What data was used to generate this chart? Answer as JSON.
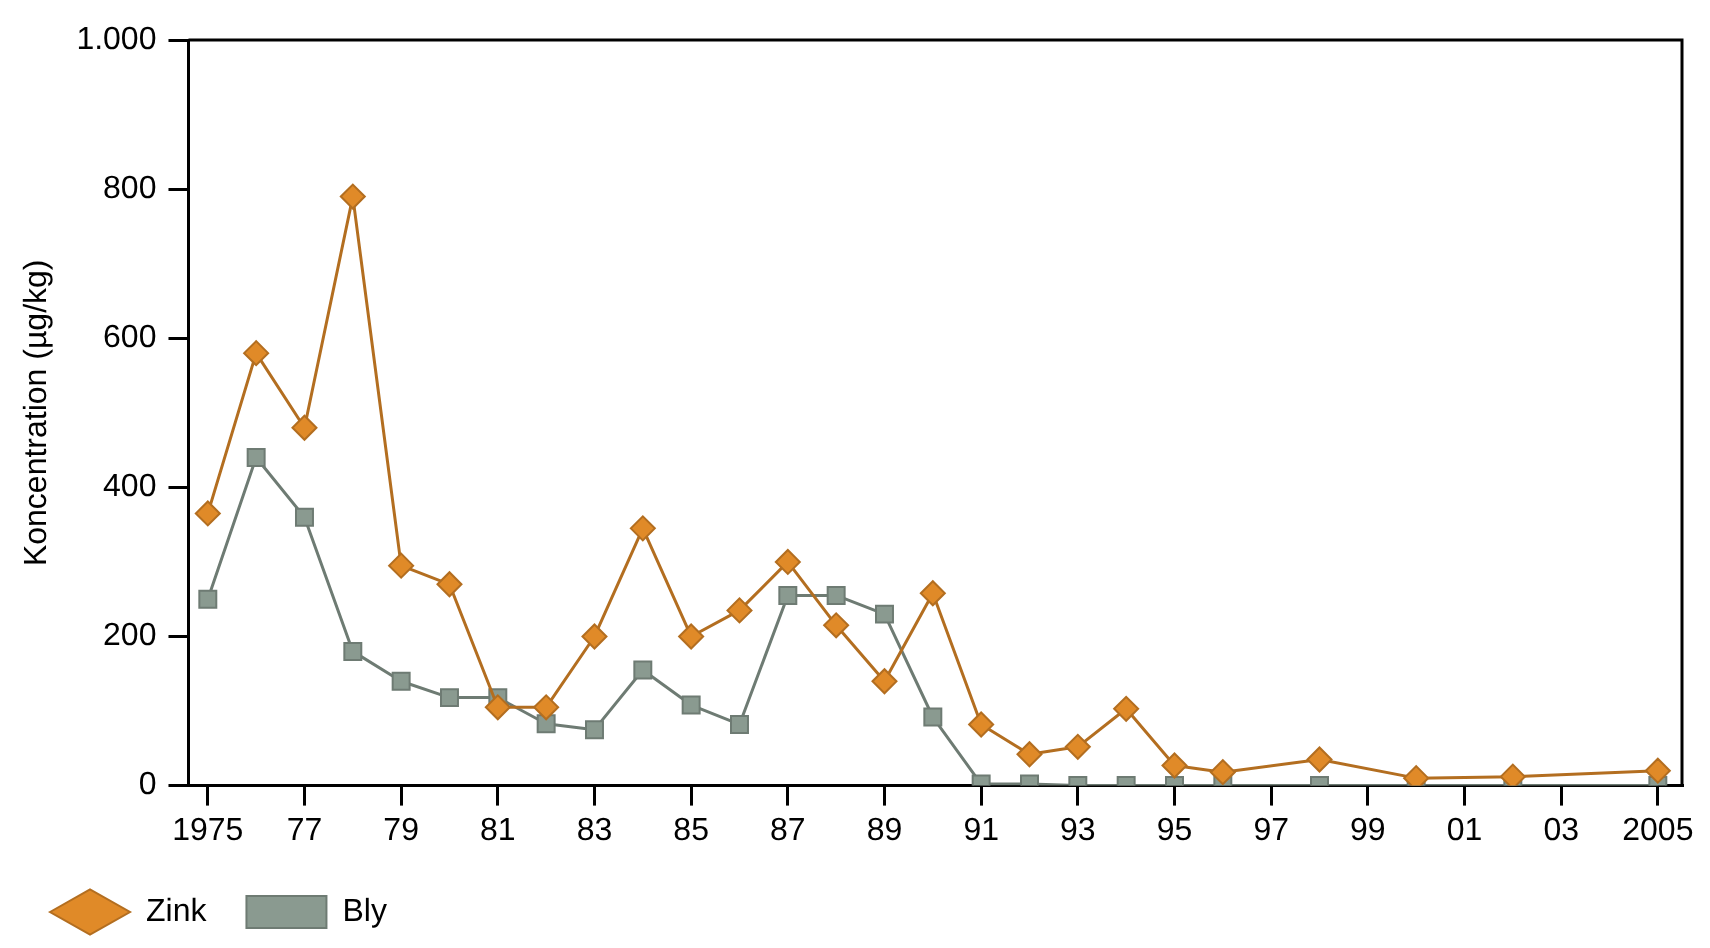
{
  "chart_data": {
    "type": "line",
    "ylabel": "Koncentration (µg/kg)",
    "x": [
      1975,
      1976,
      1977,
      1978,
      1979,
      1980,
      1981,
      1982,
      1983,
      1984,
      1985,
      1986,
      1987,
      1988,
      1989,
      1990,
      1991,
      1992,
      1993,
      1994,
      1995,
      1996,
      1998,
      2000,
      2002,
      2005
    ],
    "series": [
      {
        "name": "Zink",
        "color": "#e08a28",
        "marker": "diamond",
        "values": [
          365,
          580,
          480,
          790,
          295,
          270,
          105,
          105,
          200,
          345,
          200,
          235,
          300,
          215,
          140,
          258,
          82,
          42,
          52,
          103,
          27,
          18,
          35,
          10,
          12,
          20
        ]
      },
      {
        "name": "Bly",
        "color": "#8a9a90",
        "marker": "square",
        "values": [
          250,
          440,
          360,
          180,
          140,
          118,
          118,
          83,
          75,
          155,
          108,
          82,
          255,
          255,
          230,
          92,
          2,
          2,
          0,
          0,
          0,
          0,
          0,
          0,
          0,
          0
        ]
      }
    ],
    "xlim": [
      1974.6,
      2005.5
    ],
    "xticks": [
      {
        "value": 1975,
        "label": "1975"
      },
      {
        "value": 1977,
        "label": "77"
      },
      {
        "value": 1979,
        "label": "79"
      },
      {
        "value": 1981,
        "label": "81"
      },
      {
        "value": 1983,
        "label": "83"
      },
      {
        "value": 1985,
        "label": "85"
      },
      {
        "value": 1987,
        "label": "87"
      },
      {
        "value": 1989,
        "label": "89"
      },
      {
        "value": 1991,
        "label": "91"
      },
      {
        "value": 1993,
        "label": "93"
      },
      {
        "value": 1995,
        "label": "95"
      },
      {
        "value": 1997,
        "label": "97"
      },
      {
        "value": 1999,
        "label": "99"
      },
      {
        "value": 2001,
        "label": "01"
      },
      {
        "value": 2003,
        "label": "03"
      },
      {
        "value": 2005,
        "label": "2005"
      }
    ],
    "ylim": [
      0,
      1000
    ],
    "yticks": [
      0,
      200,
      400,
      600,
      800,
      {
        "value": 1000,
        "label": "1.000"
      }
    ],
    "grid": false,
    "legend": "bottom left",
    "line_style": "solid"
  }
}
